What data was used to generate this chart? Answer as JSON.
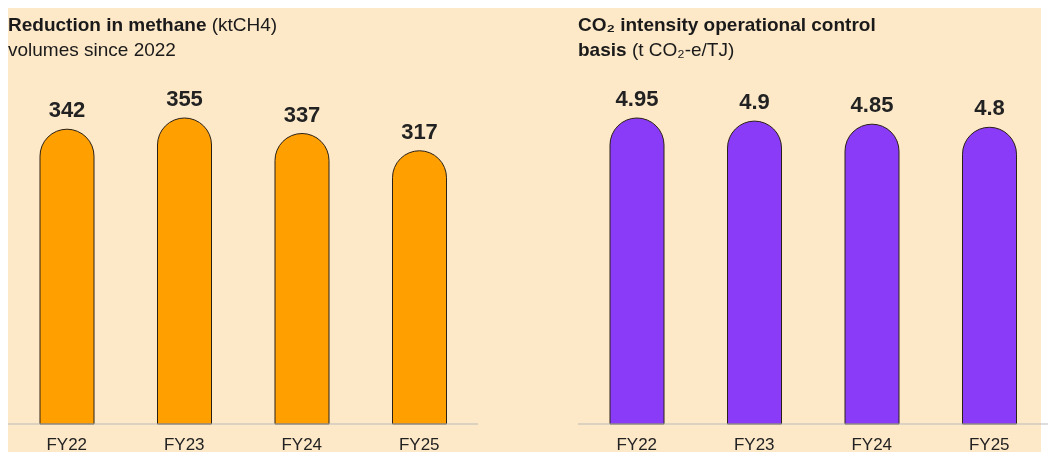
{
  "chart_data": [
    {
      "type": "bar",
      "title": "Reduction in methane (ktCH4) volumes since 2022",
      "categories": [
        "FY22",
        "FY23",
        "FY24",
        "FY25"
      ],
      "values": [
        342,
        355,
        337,
        317
      ],
      "color": "#ffa000",
      "data_labels": true
    },
    {
      "type": "bar",
      "title": "CO₂ intensity operational control basis (t CO₂-e/TJ)",
      "categories": [
        "FY22",
        "FY23",
        "FY24",
        "FY25"
      ],
      "values": [
        4.95,
        4.9,
        4.85,
        4.8
      ],
      "color": "#8a3bf7",
      "data_labels": true
    }
  ]
}
